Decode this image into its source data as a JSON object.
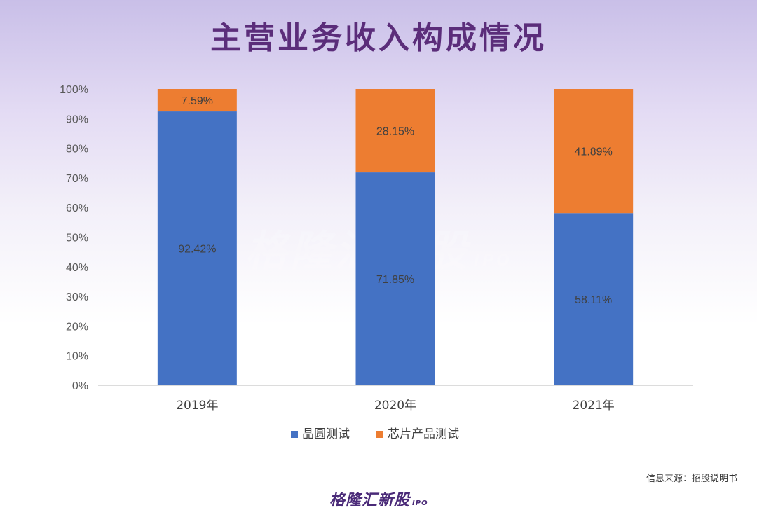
{
  "page": {
    "title": "主营业务收入构成情况",
    "source": "信息来源：招股说明书",
    "logo_text": "格隆汇新股",
    "logo_sub": "IPO"
  },
  "chart_data": {
    "type": "bar",
    "stacked": true,
    "categories": [
      "2019年",
      "2020年",
      "2021年"
    ],
    "series": [
      {
        "name": "晶圆测试",
        "values": [
          92.42,
          71.85,
          58.11
        ],
        "labels": [
          "92.42%",
          "71.85%",
          "58.11%"
        ],
        "color": "#4472c4"
      },
      {
        "name": "芯片产品测试",
        "values": [
          7.59,
          28.15,
          41.89
        ],
        "labels": [
          "7.59%",
          "28.15%",
          "41.89%"
        ],
        "color": "#ed7d31"
      }
    ],
    "yticks": [
      "0%",
      "10%",
      "20%",
      "30%",
      "40%",
      "50%",
      "60%",
      "70%",
      "80%",
      "90%",
      "100%"
    ],
    "ylim": [
      0,
      100
    ],
    "grid": false,
    "legend": "bottom"
  }
}
